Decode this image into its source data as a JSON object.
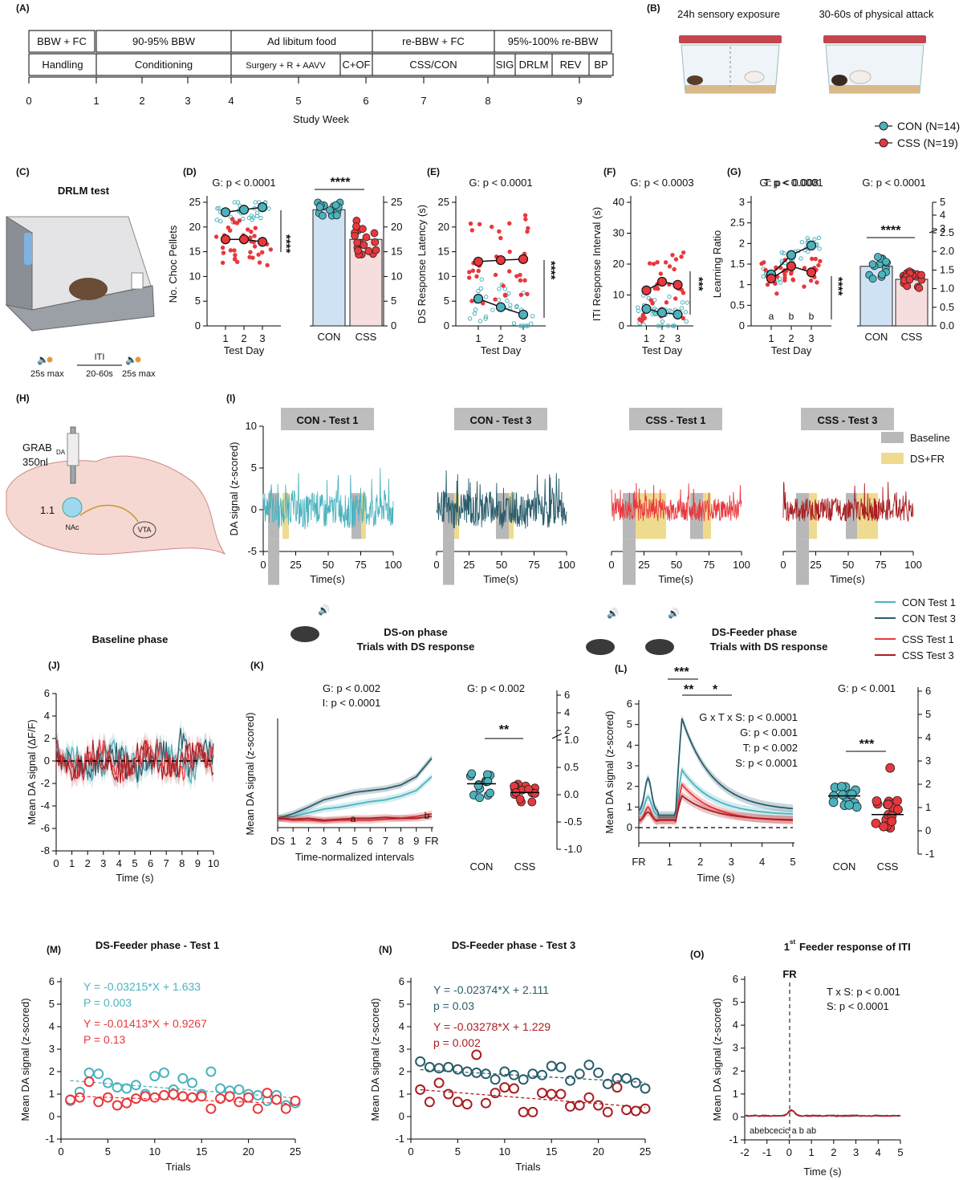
{
  "panel_labels": {
    "A": "(A)",
    "B": "(B)",
    "C": "(C)",
    "D": "(D)",
    "E": "(E)",
    "F": "(F)",
    "G": "(G)",
    "H": "(H)",
    "I": "(I)",
    "J": "(J)",
    "K": "(K)",
    "L": "(L)",
    "M": "(M)",
    "N": "(N)",
    "O": "(O)"
  },
  "colors": {
    "con": "#4bb3bf",
    "con_dark": "#2a5d6c",
    "css": "#e8383d",
    "css_dark": "#a81e22",
    "con_bar": "#cfe2f3",
    "css_bar": "#f6dede",
    "baseline": "#b8b8b8",
    "dsfr": "#efdb8f"
  },
  "legend_groups": [
    {
      "label": "CON (N=14)"
    },
    {
      "label": "CSS (N=19)"
    }
  ],
  "legend_traces": [
    {
      "label": "CON Test 1"
    },
    {
      "label": "CON Test 3"
    },
    {
      "label": "CSS Test 1"
    },
    {
      "label": "CSS Test 3"
    }
  ],
  "timeline": {
    "top_row": [
      "BBW + FC",
      "90-95% BBW",
      "Ad libitum food",
      "re-BBW + FC",
      "95%-100% re-BBW"
    ],
    "bottom_row": [
      "Handling",
      "Conditioning",
      "Surgery + R + AAVV",
      "C+OF",
      "CSS/CON",
      "SIG",
      "DRLM",
      "REV",
      "BP"
    ],
    "ticks": [
      "0",
      "1",
      "2",
      "3",
      "4",
      "5",
      "6",
      "7",
      "8",
      "9"
    ],
    "axis_label": "Study Week"
  },
  "panel_b": {
    "left_caption": "24h sensory exposure",
    "right_caption": "30-60s of physical attack"
  },
  "panel_c": {
    "title": "DRLM test",
    "ds_duration": "25s max",
    "iti_label": "ITI",
    "iti_duration": "20-60s",
    "fr_duration": "25s max"
  },
  "panel_h": {
    "sensor": "GRAB",
    "sensor_sub": "DA",
    "volume": "350nl",
    "coord": "1.1",
    "nac": "NAc",
    "vta": "VTA"
  },
  "phase_titles": {
    "baseline": "Baseline phase",
    "ds_on": "DS-on phase",
    "ds_on_sub": "Trials with DS response",
    "ds_feeder": "DS-Feeder phase",
    "ds_feeder_sub": "Trials with DS response",
    "m_title": "DS-Feeder phase - Test 1",
    "n_title": "DS-Feeder phase - Test 3",
    "o_title": "1st Feeder response of ITI",
    "o_title_sup": "st"
  },
  "chart_data": [
    {
      "id": "D_line",
      "type": "line",
      "title": "G: p < 0.0001",
      "xlabel": "Test Day",
      "ylabel": "No. Choc Pellets",
      "categories": [
        "1",
        "2",
        "3"
      ],
      "ylim": [
        0,
        25
      ],
      "yticks": [
        0,
        5,
        10,
        15,
        20,
        25
      ],
      "series": [
        {
          "name": "CON",
          "values": [
            23.0,
            23.5,
            24.0
          ]
        },
        {
          "name": "CSS",
          "values": [
            17.5,
            17.5,
            17.0
          ]
        }
      ],
      "annotations": [
        "****"
      ]
    },
    {
      "id": "D_bar",
      "type": "bar",
      "title": "****",
      "categories": [
        "CON",
        "CSS"
      ],
      "values": [
        23.5,
        17.5
      ],
      "ylim": [
        0,
        25
      ],
      "yticks": [
        0,
        5,
        10,
        15,
        20,
        25
      ]
    },
    {
      "id": "E",
      "type": "line",
      "title": "G: p < 0.0001",
      "xlabel": "Test Day",
      "ylabel": "DS Response Latency (s)",
      "categories": [
        "1",
        "2",
        "3"
      ],
      "ylim": [
        0,
        25
      ],
      "yticks": [
        0,
        5,
        10,
        15,
        20,
        25
      ],
      "series": [
        {
          "name": "CON",
          "values": [
            5.5,
            3.8,
            2.3
          ]
        },
        {
          "name": "CSS",
          "values": [
            13.0,
            13.3,
            13.5
          ]
        }
      ],
      "annotations": [
        "****"
      ]
    },
    {
      "id": "F",
      "type": "line",
      "title": "G: p < 0.0003",
      "xlabel": "Test Day",
      "ylabel": "ITI Response Interval (s)",
      "categories": [
        "1",
        "2",
        "3"
      ],
      "ylim": [
        0,
        40
      ],
      "yticks": [
        0,
        10,
        20,
        30,
        40
      ],
      "series": [
        {
          "name": "CON",
          "values": [
            5.5,
            4.3,
            3.7
          ]
        },
        {
          "name": "CSS",
          "values": [
            11.5,
            14.3,
            13.3
          ]
        }
      ],
      "annotations": [
        "***"
      ]
    },
    {
      "id": "G_line",
      "type": "line",
      "title": "G: p < 0.0001",
      "subtitle": "T: p < 0.008",
      "xlabel": "Test Day",
      "ylabel": "Learning Ratio",
      "categories": [
        "1",
        "2",
        "3"
      ],
      "ylim": [
        0,
        3.0
      ],
      "yticks": [
        0,
        0.5,
        1.0,
        1.5,
        2.0,
        2.5,
        3.0
      ],
      "series": [
        {
          "name": "CON",
          "values": [
            1.25,
            1.72,
            1.95
          ]
        },
        {
          "name": "CSS",
          "values": [
            1.15,
            1.45,
            1.3
          ]
        }
      ],
      "letters": [
        "a",
        "b",
        "b"
      ],
      "annotations": [
        "****"
      ]
    },
    {
      "id": "G_bar",
      "type": "bar",
      "title": "G: p < 0.0001",
      "categories": [
        "CON",
        "CSS"
      ],
      "values": [
        1.6,
        1.25
      ],
      "yticks": [
        "0.0",
        "0.5",
        "1.0",
        "1.5",
        "2.0",
        "2.5",
        "3",
        "4",
        "5"
      ],
      "annotations": [
        "****"
      ]
    },
    {
      "id": "I",
      "type": "line",
      "ylabel": "DA signal (z-scored)",
      "xlabel": "Time(s)",
      "xticks": [
        0,
        25,
        50,
        75,
        100
      ],
      "yticks": [
        -5,
        0,
        5,
        10
      ],
      "ylim": [
        -5,
        10
      ],
      "titles": [
        "CON - Test 1",
        "CON - Test 3",
        "CSS - Test 1",
        "CSS - Test 3"
      ],
      "legend": [
        "Baseline",
        "DS+FR"
      ]
    },
    {
      "id": "J",
      "type": "line",
      "ylabel": "Mean DA signal (ΔF/F)",
      "xlabel": "Time (s)",
      "xlim": [
        0,
        10
      ],
      "ylim": [
        -8,
        6
      ],
      "xticks": [
        0,
        1,
        2,
        3,
        4,
        5,
        6,
        7,
        8,
        9,
        10
      ],
      "yticks": [
        -8,
        -6,
        -4,
        -2,
        0,
        2,
        4,
        6
      ]
    },
    {
      "id": "K_line",
      "type": "line",
      "ylabel": "Mean DA signal (z-scored)",
      "xlabel": "Time-normalized intervals",
      "stats": [
        "G: p < 0.002",
        "I: p < 0.0001"
      ],
      "xticks": [
        "DS",
        "1",
        "2",
        "3",
        "4",
        "5",
        "6",
        "7",
        "8",
        "9",
        "FR"
      ],
      "letters": [
        "a",
        "b"
      ],
      "series": [
        {
          "name": "CON Test 1",
          "values": [
            0.0,
            0.02,
            0.06,
            0.1,
            0.12,
            0.15,
            0.18,
            0.2,
            0.24,
            0.3,
            0.45
          ]
        },
        {
          "name": "CON Test 3",
          "values": [
            0.0,
            0.05,
            0.12,
            0.2,
            0.24,
            0.28,
            0.3,
            0.32,
            0.36,
            0.45,
            0.65
          ]
        },
        {
          "name": "CSS Test 1",
          "values": [
            0.0,
            -0.02,
            -0.02,
            -0.03,
            -0.02,
            -0.02,
            -0.02,
            -0.01,
            0.0,
            0.02,
            0.05
          ]
        },
        {
          "name": "CSS Test 3",
          "values": [
            0.0,
            -0.01,
            0.0,
            -0.02,
            -0.01,
            0.0,
            0.0,
            0.01,
            0.0,
            0.0,
            0.02
          ]
        }
      ]
    },
    {
      "id": "K_scatter",
      "type": "scatter",
      "title": "G: p < 0.002",
      "categories": [
        "CON",
        "CSS"
      ],
      "values": [
        0.2,
        0.04
      ],
      "yticks": [
        "-1.0",
        "-0.5",
        "0.0",
        "0.5",
        "1.0",
        "2",
        "4",
        "6"
      ],
      "annotations": [
        "**"
      ]
    },
    {
      "id": "L_line",
      "type": "line",
      "ylabel": "Mean DA signal (z-scored)",
      "xlabel": "Time (s)",
      "xticks": [
        "FR",
        "1",
        "2",
        "3",
        "4",
        "5"
      ],
      "ylim": [
        -0.5,
        6
      ],
      "yticks": [
        0,
        1,
        2,
        3,
        4,
        5,
        6
      ],
      "stats": [
        "G x T x S: p < 0.0001",
        "G: p < 0.001",
        "T: p < 0.002",
        "S: p < 0.0001"
      ],
      "sig": [
        "***",
        "**",
        "*"
      ]
    },
    {
      "id": "L_scatter",
      "type": "scatter",
      "title": "G: p < 0.001",
      "categories": [
        "CON",
        "CSS"
      ],
      "values": [
        1.5,
        0.7
      ],
      "ylim": [
        -1,
        6
      ],
      "yticks": [
        -1,
        0,
        1,
        2,
        3,
        4,
        5,
        6
      ],
      "annotations": [
        "***"
      ]
    },
    {
      "id": "M",
      "type": "scatter",
      "title": "DS-Feeder phase - Test 1",
      "xlabel": "Trials",
      "ylabel": "Mean DA signal (z-scored)",
      "xlim": [
        0,
        25
      ],
      "ylim": [
        -1,
        6
      ],
      "xticks": [
        0,
        5,
        10,
        15,
        20,
        25
      ],
      "yticks": [
        -1,
        0,
        1,
        2,
        3,
        4,
        5,
        6
      ],
      "series": [
        {
          "name": "CON",
          "values": [
            0.7,
            1.1,
            1.95,
            1.9,
            1.5,
            1.3,
            1.25,
            1.4,
            1.0,
            1.8,
            1.95,
            1.2,
            1.7,
            1.5,
            1.0,
            2.0,
            1.25,
            1.15,
            1.2,
            1.0,
            0.95,
            0.7,
            0.95,
            0.5,
            0.6
          ]
        },
        {
          "name": "CSS",
          "values": [
            0.75,
            0.85,
            1.55,
            0.65,
            0.85,
            0.5,
            0.6,
            0.8,
            0.9,
            0.85,
            0.95,
            1.0,
            0.9,
            0.85,
            0.9,
            0.35,
            0.8,
            0.9,
            0.65,
            0.85,
            0.35,
            1.05,
            0.75,
            0.35,
            0.7
          ]
        }
      ],
      "fits": [
        {
          "name": "CON",
          "text": "Y = -0.03215*X + 1.633",
          "p": "P = 0.003"
        },
        {
          "name": "CSS",
          "text": "Y = -0.01413*X + 0.9267",
          "p": "P = 0.13"
        }
      ]
    },
    {
      "id": "N",
      "type": "scatter",
      "title": "DS-Feeder phase - Test 3",
      "xlabel": "Trials",
      "ylabel": "Mean DA signal (z-scored)",
      "xlim": [
        0,
        25
      ],
      "ylim": [
        -1,
        6
      ],
      "xticks": [
        0,
        5,
        10,
        15,
        20,
        25
      ],
      "yticks": [
        -1,
        0,
        1,
        2,
        3,
        4,
        5,
        6
      ],
      "series": [
        {
          "name": "CON",
          "values": [
            2.45,
            2.2,
            2.15,
            2.2,
            2.1,
            2.0,
            1.95,
            1.9,
            1.65,
            2.0,
            1.85,
            1.65,
            1.9,
            1.85,
            2.25,
            2.2,
            1.6,
            1.9,
            2.3,
            1.95,
            1.45,
            1.7,
            1.7,
            1.5,
            1.25
          ]
        },
        {
          "name": "CSS",
          "values": [
            1.2,
            0.65,
            1.5,
            1.0,
            0.65,
            0.55,
            2.75,
            0.6,
            1.05,
            1.3,
            1.25,
            0.2,
            0.2,
            1.05,
            1.0,
            1.0,
            0.45,
            0.5,
            0.85,
            0.5,
            0.2,
            1.3,
            0.3,
            0.25,
            0.35
          ]
        }
      ],
      "fits": [
        {
          "name": "CON",
          "text": "Y = -0.02374*X + 2.111",
          "p": "p = 0.03"
        },
        {
          "name": "CSS",
          "text": "Y = -0.03278*X + 1.229",
          "p": "p = 0.002"
        }
      ]
    },
    {
      "id": "O",
      "type": "line",
      "xlabel": "Time (s)",
      "ylabel": "Mean DA signal (z-scored)",
      "xlim": [
        -2,
        5
      ],
      "ylim": [
        -1,
        6
      ],
      "xticks": [
        -2,
        -1,
        0,
        1,
        2,
        3,
        4,
        5
      ],
      "yticks": [
        -1,
        0,
        1,
        2,
        3,
        4,
        5,
        6
      ],
      "marker": "FR",
      "stats": [
        "T x S: p < 0.001",
        "S: p < 0.0001"
      ],
      "letters": "abebcecic  a  b     ab"
    }
  ]
}
